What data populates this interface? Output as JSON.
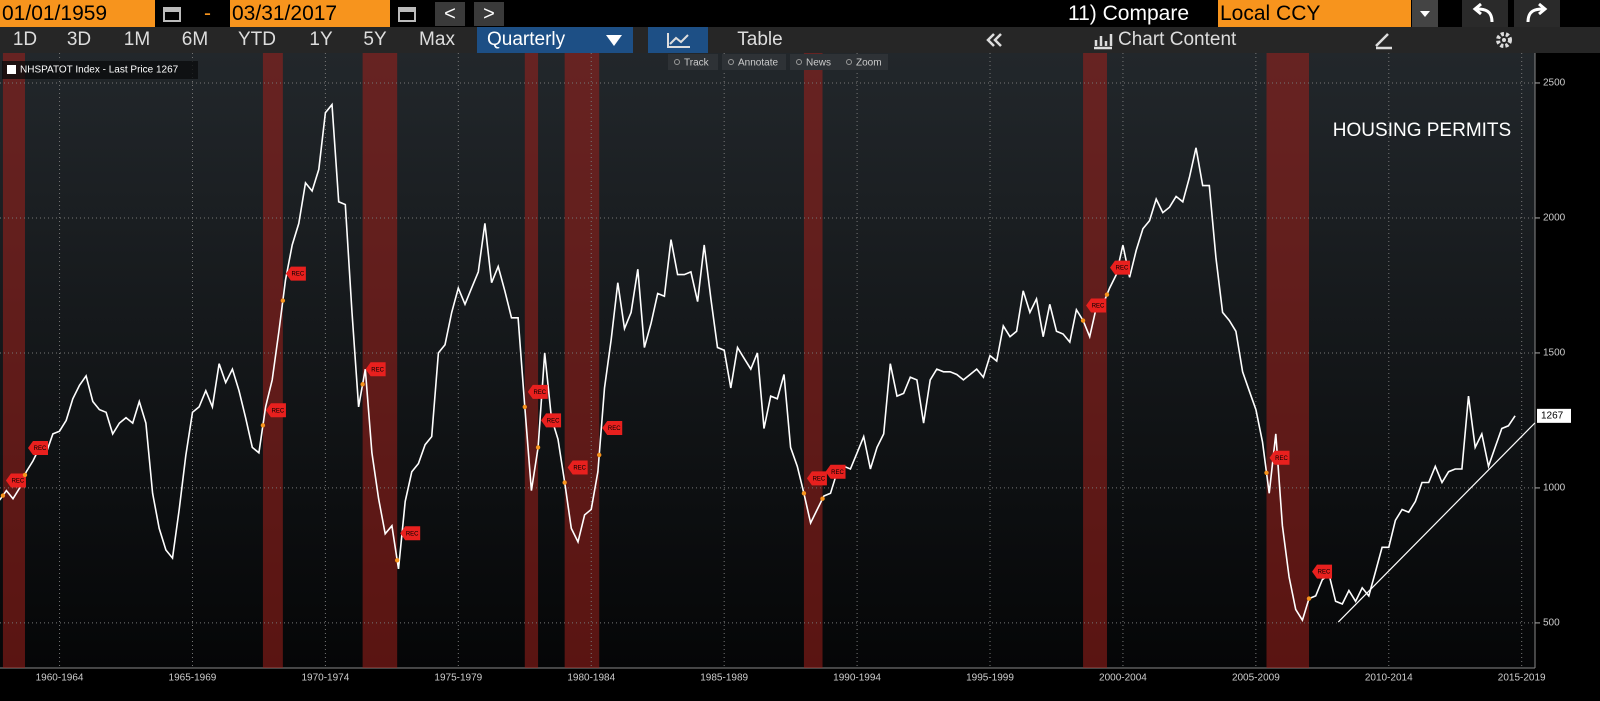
{
  "toolbar": {
    "start_date": "01/01/1959",
    "date_sep": "-",
    "end_date": "03/31/2017",
    "prev": "<",
    "next": ">",
    "compare": "11) Compare",
    "currency": "Local CCY",
    "periods": [
      "1D",
      "3D",
      "1M",
      "6M",
      "YTD",
      "1Y",
      "5Y",
      "Max"
    ],
    "frequency": "Quarterly",
    "table": "Table",
    "chart_content": "Chart Content",
    "tools": [
      "Track",
      "Annotate",
      "News",
      "Zoom"
    ]
  },
  "chart_data": {
    "type": "line",
    "annotation": "HOUSING PERMITS",
    "x": [
      1960.25,
      1960.5,
      1960.75,
      1961,
      1961.25,
      1961.5,
      1961.75,
      1962,
      1962.25,
      1962.5,
      1962.75,
      1963,
      1963.25,
      1963.5,
      1963.75,
      1964,
      1964.25,
      1964.5,
      1964.75,
      1965,
      1965.25,
      1965.5,
      1965.75,
      1966,
      1966.25,
      1966.5,
      1966.75,
      1967,
      1967.25,
      1967.5,
      1967.75,
      1968,
      1968.25,
      1968.5,
      1968.75,
      1969,
      1969.25,
      1969.5,
      1969.75,
      1970,
      1970.25,
      1970.5,
      1970.75,
      1971,
      1971.25,
      1971.5,
      1971.75,
      1972,
      1972.25,
      1972.5,
      1972.75,
      1973,
      1973.25,
      1973.5,
      1973.75,
      1974,
      1974.25,
      1974.5,
      1974.75,
      1975,
      1975.25,
      1975.5,
      1975.75,
      1976,
      1976.25,
      1976.5,
      1976.75,
      1977,
      1977.25,
      1977.5,
      1977.75,
      1978,
      1978.25,
      1978.5,
      1978.75,
      1979,
      1979.25,
      1979.5,
      1979.75,
      1980,
      1980.25,
      1980.5,
      1980.75,
      1981,
      1981.25,
      1981.5,
      1981.75,
      1982,
      1982.25,
      1982.5,
      1982.75,
      1983,
      1983.25,
      1983.5,
      1983.75,
      1984,
      1984.25,
      1984.5,
      1984.75,
      1985,
      1985.25,
      1985.5,
      1985.75,
      1986,
      1986.25,
      1986.5,
      1986.75,
      1987,
      1987.25,
      1987.5,
      1987.75,
      1988,
      1988.25,
      1988.5,
      1988.75,
      1989,
      1989.25,
      1989.5,
      1989.75,
      1990,
      1990.25,
      1990.5,
      1990.75,
      1991,
      1991.25,
      1991.5,
      1991.75,
      1992,
      1992.25,
      1992.5,
      1992.75,
      1993,
      1993.25,
      1993.5,
      1993.75,
      1994,
      1994.25,
      1994.5,
      1994.75,
      1995,
      1995.25,
      1995.5,
      1995.75,
      1996,
      1996.25,
      1996.5,
      1996.75,
      1997,
      1997.25,
      1997.5,
      1997.75,
      1998,
      1998.25,
      1998.5,
      1998.75,
      1999,
      1999.25,
      1999.5,
      1999.75,
      2000,
      2000.25,
      2000.5,
      2000.75,
      2001,
      2001.25,
      2001.5,
      2001.75,
      2002,
      2002.25,
      2002.5,
      2002.75,
      2003,
      2003.25,
      2003.5,
      2003.75,
      2004,
      2004.25,
      2004.5,
      2004.75,
      2005,
      2005.25,
      2005.5,
      2005.75,
      2006,
      2006.25,
      2006.5,
      2006.75,
      2007,
      2007.25,
      2007.5,
      2007.75,
      2008,
      2008.25,
      2008.5,
      2008.75,
      2009,
      2009.25,
      2009.5,
      2009.75,
      2010,
      2010.25,
      2010.5,
      2010.75,
      2011,
      2011.25,
      2011.5,
      2011.75,
      2012,
      2012.25,
      2012.5,
      2012.75,
      2013,
      2013.25,
      2013.5,
      2013.75,
      2014,
      2014.25,
      2014.5,
      2014.75,
      2015,
      2015.25,
      2015.5,
      2015.75,
      2016,
      2016.25,
      2016.5,
      2016.75,
      2017,
      2017.25
    ],
    "series": [
      {
        "name": "NHSPATOT Index - Last Price 1267",
        "color": "#ffffff",
        "values": [
          955,
          990,
          960,
          1000,
          1060,
          1100,
          1150,
          1130,
          1200,
          1210,
          1250,
          1330,
          1380,
          1415,
          1320,
          1290,
          1280,
          1200,
          1240,
          1260,
          1240,
          1320,
          1240,
          980,
          850,
          770,
          740,
          920,
          1120,
          1280,
          1300,
          1360,
          1300,
          1460,
          1390,
          1440,
          1360,
          1260,
          1150,
          1130,
          1300,
          1400,
          1580,
          1770,
          1900,
          1980,
          2130,
          2100,
          2180,
          2390,
          2420,
          2060,
          2050,
          1650,
          1300,
          1440,
          1130,
          960,
          830,
          860,
          700,
          950,
          1060,
          1090,
          1160,
          1190,
          1500,
          1530,
          1650,
          1740,
          1680,
          1740,
          1800,
          1980,
          1760,
          1820,
          1730,
          1630,
          1630,
          1300,
          990,
          1150,
          1500,
          1260,
          1180,
          1020,
          850,
          800,
          900,
          920,
          1060,
          1370,
          1550,
          1760,
          1590,
          1650,
          1810,
          1520,
          1610,
          1720,
          1710,
          1920,
          1790,
          1790,
          1800,
          1690,
          1900,
          1700,
          1520,
          1510,
          1370,
          1520,
          1480,
          1440,
          1500,
          1220,
          1340,
          1330,
          1420,
          1150,
          1080,
          980,
          870,
          920,
          970,
          980,
          1060,
          1080,
          1070,
          1130,
          1190,
          1070,
          1150,
          1200,
          1460,
          1340,
          1350,
          1410,
          1400,
          1240,
          1400,
          1440,
          1430,
          1430,
          1420,
          1400,
          1420,
          1440,
          1410,
          1490,
          1470,
          1600,
          1560,
          1580,
          1730,
          1650,
          1700,
          1560,
          1680,
          1580,
          1570,
          1540,
          1660,
          1620,
          1560,
          1670,
          1680,
          1740,
          1790,
          1900,
          1780,
          1880,
          1960,
          1990,
          2070,
          2020,
          2040,
          2080,
          2060,
          2150,
          2260,
          2120,
          2120,
          1850,
          1650,
          1620,
          1580,
          1430,
          1360,
          1290,
          1170,
          980,
          1200,
          860,
          670,
          550,
          510,
          590,
          600,
          660,
          680,
          580,
          570,
          620,
          580,
          630,
          600,
          690,
          780,
          780,
          880,
          920,
          910,
          950,
          1020,
          1020,
          1080,
          1020,
          1060,
          1070,
          1070,
          1340,
          1150,
          1200,
          1080,
          1150,
          1220,
          1230,
          1267
        ]
      }
    ],
    "xlim": [
      1960.26,
      2018.0
    ],
    "xticks": [
      {
        "value": 1962.5,
        "label": "1960-1964"
      },
      {
        "value": 1967.5,
        "label": "1965-1969"
      },
      {
        "value": 1972.5,
        "label": "1970-1974"
      },
      {
        "value": 1977.5,
        "label": "1975-1979"
      },
      {
        "value": 1982.5,
        "label": "1980-1984"
      },
      {
        "value": 1987.5,
        "label": "1985-1989"
      },
      {
        "value": 1992.5,
        "label": "1990-1994"
      },
      {
        "value": 1997.5,
        "label": "1995-1999"
      },
      {
        "value": 2002.5,
        "label": "2000-2004"
      },
      {
        "value": 2007.5,
        "label": "2005-2009"
      },
      {
        "value": 2012.5,
        "label": "2010-2014"
      },
      {
        "value": 2017.5,
        "label": "2015-2019"
      }
    ],
    "ylim": [
      333,
      2611
    ],
    "yticks": [
      500,
      1000,
      1500,
      2000,
      2500
    ],
    "grid": true,
    "recessions": [
      [
        1960.37,
        1961.2
      ],
      [
        1970.15,
        1970.9
      ],
      [
        1973.9,
        1975.2
      ],
      [
        1980.0,
        1980.5
      ],
      [
        1981.5,
        1982.8
      ],
      [
        1990.5,
        1991.2
      ],
      [
        2001.0,
        2001.9
      ],
      [
        2007.9,
        2009.5
      ]
    ],
    "recession_label": "REC",
    "recession_color": "#a0201c",
    "trend_line": {
      "x": [
        2010.6,
        2018.0
      ],
      "values": [
        503,
        1241
      ]
    }
  }
}
